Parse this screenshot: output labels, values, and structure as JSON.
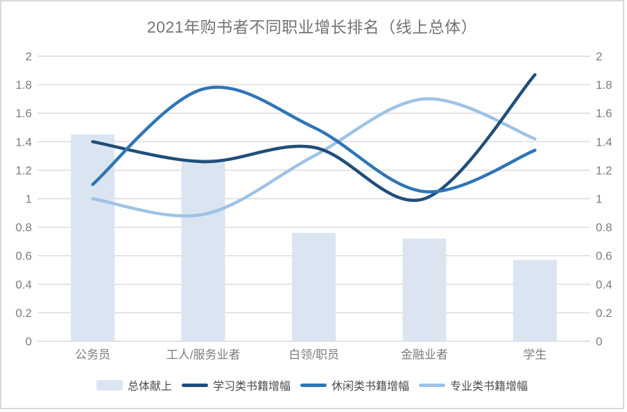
{
  "title": "2021年购书者不同职业增长排名（线上总体）",
  "colors": {
    "bar_fill": "#dbe5f2",
    "line_study": "#1f4e79",
    "line_leisure": "#2e75b6",
    "line_professional": "#9dc3e6",
    "gridline": "#d9d9d9",
    "axis_text": "#7d7d7d",
    "title_text": "#737373",
    "legend_text": "#4c4c4c",
    "frame_border": "#d9d9d9"
  },
  "chart_data": {
    "type": "combo (bar + 3 smooth lines)",
    "title": "2021年购书者不同职业增长排名（线上总体）",
    "categories": [
      "公务员",
      "工人/服务业者",
      "白领/职员",
      "金融业者",
      "学生"
    ],
    "series": [
      {
        "name": "总体献上",
        "type": "bar",
        "color": "#dbe5f2",
        "values": [
          1.45,
          1.28,
          0.76,
          0.72,
          0.57
        ]
      },
      {
        "name": "学习类书籍增幅",
        "type": "line",
        "color": "#1f4e79",
        "values": [
          1.4,
          1.26,
          1.36,
          1.0,
          1.87
        ]
      },
      {
        "name": "休闲类书籍增幅",
        "type": "line",
        "color": "#2e75b6",
        "values": [
          1.1,
          1.77,
          1.5,
          1.05,
          1.34
        ]
      },
      {
        "name": "专业类书籍增幅",
        "type": "line",
        "color": "#9dc3e6",
        "values": [
          1.0,
          0.89,
          1.3,
          1.7,
          1.42
        ]
      }
    ],
    "y_axis": {
      "min": 0,
      "max": 2,
      "step": 0.2,
      "tick_labels": [
        "0",
        "0.2",
        "0.4",
        "0.6",
        "0.8",
        "1",
        "1.2",
        "1.4",
        "1.6",
        "1.8",
        "2"
      ],
      "sides": [
        "left",
        "right"
      ]
    },
    "xlabel": "",
    "ylabel": "",
    "grid": true,
    "line_smooth": true,
    "legend_position": "bottom"
  }
}
